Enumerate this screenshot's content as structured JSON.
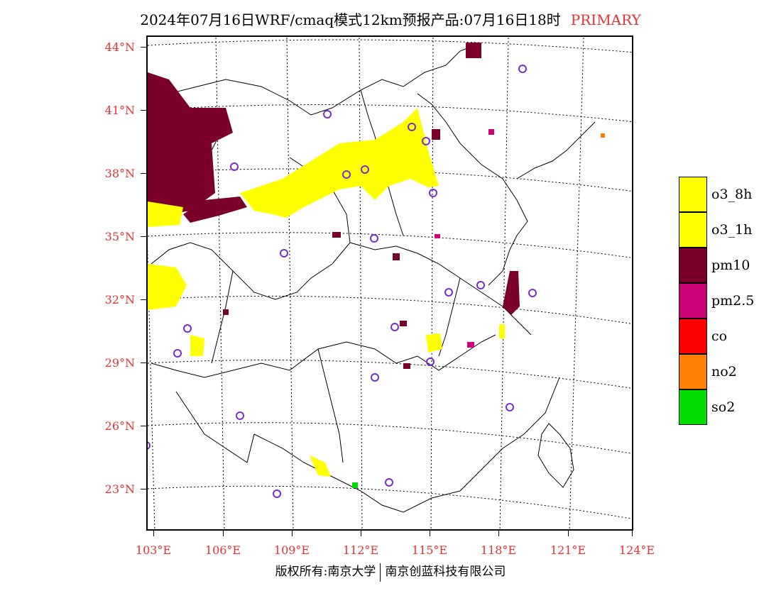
{
  "title": {
    "text": "2024年07月16日WRF/cmaq模式12km预报产品:07月16日18时",
    "tag": "PRIMARY",
    "tag_color": "#e33333"
  },
  "axes": {
    "lat_labels": [
      "44°N",
      "41°N",
      "38°N",
      "35°N",
      "32°N",
      "29°N",
      "26°N",
      "23°N"
    ],
    "lon_labels": [
      "103°E",
      "106°E",
      "109°E",
      "112°E",
      "115°E",
      "118°E",
      "121°E",
      "124°E"
    ],
    "label_color": "#e33333"
  },
  "legend": [
    {
      "label": "o3_8h",
      "color": "#ffff00"
    },
    {
      "label": "o3_1h",
      "color": "#ffff00"
    },
    {
      "label": "pm10",
      "color": "#7b0029"
    },
    {
      "label": "pm2.5",
      "color": "#cc0077"
    },
    {
      "label": "co",
      "color": "#ff0000"
    },
    {
      "label": "no2",
      "color": "#ff7f00"
    },
    {
      "label": "so2",
      "color": "#00dd00"
    }
  ],
  "footer": {
    "left": "版权所有:南京大学",
    "right": "南京创蓝科技有限公司"
  }
}
